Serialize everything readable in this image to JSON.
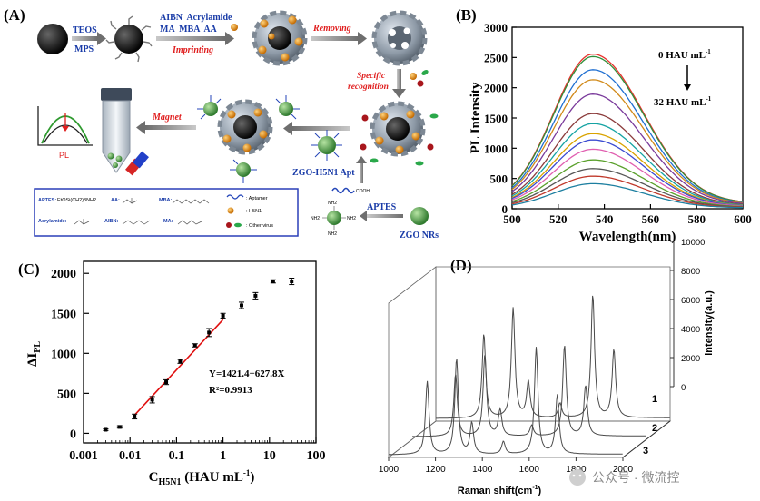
{
  "figure": {
    "panel_a": {
      "label": "(A)",
      "step_teos": "TEOS",
      "step_mps": "MPS",
      "reagents_top": "AIBN  Acrylamide",
      "reagents_bottom": "MA  MBA  AA",
      "imprinting": "Imprinting",
      "removing": "Removing",
      "specific": "Specific",
      "recognition": "recognition",
      "magnet": "Magnet",
      "pl_label": "PL",
      "zgo_apt": "ZGO-H5N1 Apt",
      "aptes": "APTES",
      "zgo_nrs": "ZGO NRs",
      "cooh": "COOH",
      "nh2": "NH2",
      "legend": {
        "aptes_key": "APTES:",
        "aptes_formula": "EtOSi(CH2)3NH2",
        "aa_key": "AA:",
        "mba_key": "MBA:",
        "acrylamide_key": "Acrylamide:",
        "aibn_key": "AIBN:",
        "ma_key": "MA:",
        "aptamer": ": Aptamer",
        "h5n1": ": H5N1",
        "other_virus": ": Other virus"
      }
    },
    "panel_b": {
      "label": "(B)",
      "annotation_top": "0 HAU mL",
      "annotation_bottom": "32 HAU mL",
      "sup": "-1"
    },
    "panel_c": {
      "label": "(C)",
      "equation": "Y=1421.4+627.8X",
      "r2": "R²=0.9913"
    },
    "panel_d": {
      "label": "(D)"
    },
    "watermark": "公众号 · 微流控"
  },
  "chart_data": [
    {
      "type": "line",
      "title": "",
      "xlabel": "Wavelength(nm)",
      "ylabel": "PL Intensity",
      "xlim": [
        500,
        600
      ],
      "ylim": [
        0,
        3000
      ],
      "x_ticks": [
        500,
        520,
        540,
        560,
        580,
        600
      ],
      "y_ticks": [
        0,
        500,
        1000,
        1500,
        2000,
        2500,
        3000
      ],
      "peak_wavelength": 535,
      "series": [
        {
          "name": "s1",
          "peak": 2470,
          "color": "#e8322d"
        },
        {
          "name": "s2",
          "peak": 2430,
          "color": "#2f8f3a"
        },
        {
          "name": "s3",
          "peak": 2220,
          "color": "#1f6fd1"
        },
        {
          "name": "s4",
          "peak": 2060,
          "color": "#d18a1a"
        },
        {
          "name": "s5",
          "peak": 1830,
          "color": "#7a3a9b"
        },
        {
          "name": "s6",
          "peak": 1520,
          "color": "#8b3b3b"
        },
        {
          "name": "s7",
          "peak": 1360,
          "color": "#16a3a3"
        },
        {
          "name": "s8",
          "peak": 1200,
          "color": "#d9a300"
        },
        {
          "name": "s9",
          "peak": 1100,
          "color": "#3b4bd1"
        },
        {
          "name": "s10",
          "peak": 950,
          "color": "#e05fb0"
        },
        {
          "name": "s11",
          "peak": 780,
          "color": "#5aa02c"
        },
        {
          "name": "s12",
          "peak": 640,
          "color": "#555555"
        },
        {
          "name": "s13",
          "peak": 520,
          "color": "#c0392b"
        },
        {
          "name": "s14",
          "peak": 400,
          "color": "#1d7fa0"
        }
      ]
    },
    {
      "type": "scatter",
      "title": "",
      "xlabel": "C",
      "xlabel_sub": "H5N1",
      "xlabel_unit": " (HAU mL",
      "xlabel_sup": "-1",
      "xlabel_end": ")",
      "ylabel": "ΔI",
      "ylabel_sub": "PL",
      "x_scale": "log",
      "xlim": [
        0.001,
        100
      ],
      "ylim": [
        -120,
        2150
      ],
      "x_ticks": [
        0.001,
        0.01,
        0.1,
        1,
        10,
        100
      ],
      "x_tick_labels": [
        "0.001",
        "0.01",
        "0.1",
        "1",
        "10",
        "100"
      ],
      "y_ticks": [
        0,
        500,
        1000,
        1500,
        2000
      ],
      "points": [
        {
          "x": 0.003,
          "y": 45,
          "err": 10
        },
        {
          "x": 0.006,
          "y": 80,
          "err": 15
        },
        {
          "x": 0.0125,
          "y": 210,
          "err": 30
        },
        {
          "x": 0.03,
          "y": 420,
          "err": 40
        },
        {
          "x": 0.06,
          "y": 640,
          "err": 30
        },
        {
          "x": 0.12,
          "y": 900,
          "err": 25
        },
        {
          "x": 0.25,
          "y": 1100,
          "err": 20
        },
        {
          "x": 0.5,
          "y": 1260,
          "err": 50
        },
        {
          "x": 1,
          "y": 1470,
          "err": 30
        },
        {
          "x": 2.5,
          "y": 1600,
          "err": 40
        },
        {
          "x": 5,
          "y": 1720,
          "err": 40
        },
        {
          "x": 12,
          "y": 1900,
          "err": 20
        },
        {
          "x": 30,
          "y": 1900,
          "err": 40
        }
      ],
      "fit": {
        "x_start": 0.0125,
        "x_end": 1,
        "slope": 627.8,
        "intercept": 1421.4,
        "color": "#e01010"
      }
    },
    {
      "type": "line",
      "title": "",
      "xlabel": "Raman shift(cm",
      "xlabel_sup": "-1",
      "xlabel_end": ")",
      "ylabel": "intensity(a.u.)",
      "xlim": [
        1000,
        2000
      ],
      "ylim": [
        0,
        10000
      ],
      "x_ticks": [
        1000,
        1200,
        1400,
        1600,
        1800,
        2000
      ],
      "y_ticks": [
        0,
        2000,
        4000,
        6000,
        8000,
        10000
      ],
      "depth_labels": [
        "1",
        "2",
        "3"
      ],
      "peaks": [
        {
          "x": 1185,
          "h": 5200
        },
        {
          "x": 1310,
          "h": 6800
        },
        {
          "x": 1375,
          "h": 2200
        },
        {
          "x": 1510,
          "h": 900
        },
        {
          "x": 1650,
          "h": 7600
        },
        {
          "x": 1740,
          "h": 4200
        }
      ]
    }
  ]
}
